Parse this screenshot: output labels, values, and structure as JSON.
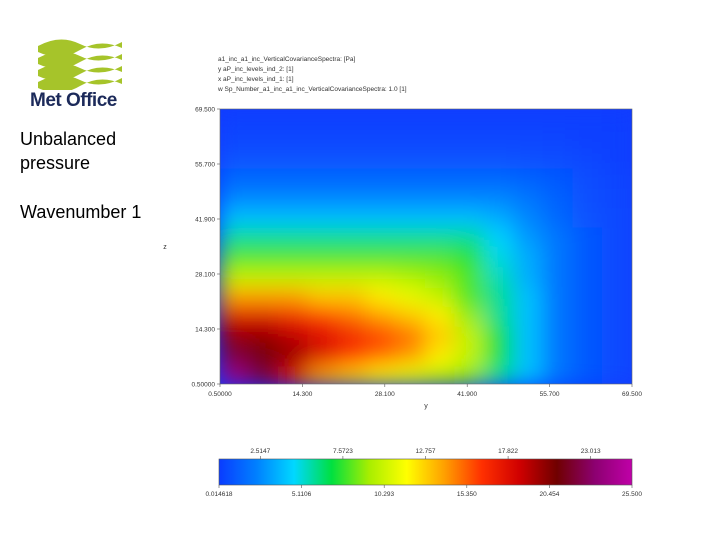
{
  "logo": {
    "text": "Met Office"
  },
  "panel": {
    "title": "Unbalanced pressure",
    "subtitle": "Wavenumber 1"
  },
  "header": {
    "lines": [
      "a1_inc_a1_inc_VerticalCovarianceSpectra: [Pa]",
      "y  aP_inc_levels_ind_2: [1]",
      "x  aP_inc_levels_ind_1: [1]",
      "w  Sp_Number_a1_inc_a1_inc_VerticalCovarianceSpectra: 1.0 [1]"
    ]
  },
  "colors": {
    "stops": [
      "#0a3cff",
      "#0080ff",
      "#00d8ff",
      "#00e040",
      "#a8ee00",
      "#ffff00",
      "#ffa000",
      "#ff3000",
      "#d00000",
      "#700000",
      "#8c0070",
      "#c000a8"
    ]
  },
  "chart_data": {
    "type": "heatmap",
    "xlabel": "y",
    "ylabel": "z",
    "xlim": [
      0.5,
      69.5
    ],
    "ylim": [
      0.5,
      69.5
    ],
    "x_ticks": [
      "0.50000",
      "14.300",
      "28.100",
      "41.900",
      "55.700",
      "69.500"
    ],
    "y_ticks": [
      "0.50000",
      "14.300",
      "28.100",
      "41.900",
      "55.700",
      "69.500"
    ],
    "colorbar": {
      "top_labels": [
        "2.5147",
        "7.5723",
        "12.757",
        "17.822",
        "23.013"
      ],
      "bottom_labels": [
        "0.014618",
        "5.1106",
        "10.293",
        "15.350",
        "20.454",
        "25.500"
      ],
      "range": [
        0.014618,
        25.5
      ]
    },
    "grid_y": [
      [
        24,
        22,
        18,
        14,
        13,
        12,
        11,
        10,
        9,
        6,
        4,
        2,
        1,
        0.5
      ],
      [
        22,
        21,
        20,
        18,
        16,
        15,
        14,
        12,
        10,
        7,
        4,
        2,
        1,
        0.5
      ],
      [
        20,
        20,
        19,
        18,
        17,
        16,
        15,
        13,
        10,
        7,
        4,
        2,
        1,
        0.5
      ],
      [
        18,
        18,
        17,
        16,
        15,
        14,
        13,
        12,
        9,
        6,
        4,
        2,
        1,
        0.5
      ],
      [
        14,
        14,
        14,
        13,
        13,
        12,
        11,
        10,
        8,
        6,
        4,
        2,
        1,
        0.5
      ],
      [
        10,
        10,
        10,
        10,
        10,
        10,
        9.5,
        9,
        8,
        5.5,
        3.5,
        2,
        1,
        0.5
      ],
      [
        8,
        8,
        8,
        8,
        8,
        8,
        8,
        8,
        7.5,
        5,
        3.5,
        2,
        1,
        0.5
      ],
      [
        6,
        6,
        6,
        6,
        6,
        6,
        6,
        6,
        6,
        4.5,
        3,
        2,
        1,
        0.5
      ],
      [
        4,
        4,
        4,
        4,
        4,
        4,
        4,
        4,
        4,
        3.5,
        2.5,
        1.5,
        0.8,
        0.5
      ],
      [
        2.5,
        2.5,
        2.5,
        2.5,
        2.5,
        2.5,
        2.5,
        2.5,
        2.5,
        2.5,
        2,
        1.3,
        0.7,
        0.4
      ],
      [
        1.5,
        1.5,
        1.5,
        1.5,
        1.5,
        1.5,
        1.5,
        1.5,
        1.5,
        1.5,
        1.3,
        1,
        0.6,
        0.3
      ],
      [
        0.8,
        0.8,
        0.8,
        0.8,
        0.8,
        0.8,
        0.8,
        0.8,
        0.8,
        0.8,
        0.7,
        0.6,
        0.4,
        0.2
      ],
      [
        0.4,
        0.4,
        0.4,
        0.4,
        0.4,
        0.4,
        0.4,
        0.4,
        0.4,
        0.4,
        0.4,
        0.3,
        0.2,
        0.1
      ],
      [
        0.2,
        0.2,
        0.2,
        0.2,
        0.2,
        0.2,
        0.2,
        0.2,
        0.2,
        0.2,
        0.2,
        0.15,
        0.1,
        0.05
      ]
    ]
  }
}
